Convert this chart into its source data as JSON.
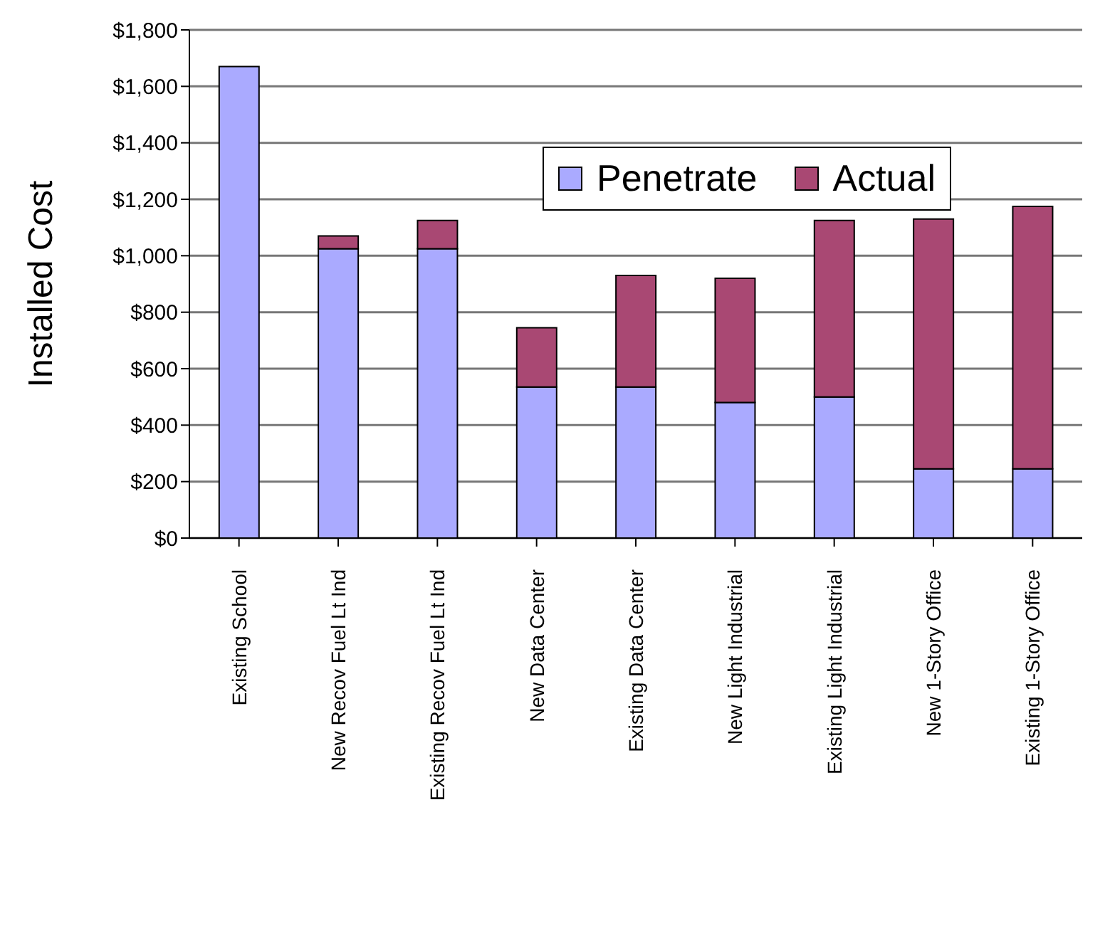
{
  "chart_data": {
    "type": "bar",
    "stacked": true,
    "ylabel": "Installed Cost",
    "categories": [
      "Existing School",
      "New Recov Fuel Lt Ind",
      "Existing Recov Fuel Lt Ind",
      "New Data Center",
      "Existing Data Center",
      "New Light Industrial",
      "Existing Light Industrial",
      "New 1-Story Office",
      "Existing 1-Story Office"
    ],
    "series": [
      {
        "name": "Penetrate",
        "color": "#aaaaff",
        "values": [
          1670,
          1025,
          1025,
          535,
          535,
          480,
          500,
          245,
          245
        ]
      },
      {
        "name": "Actual",
        "color": "#a94873",
        "values": [
          0,
          45,
          100,
          210,
          395,
          440,
          625,
          885,
          930
        ]
      }
    ],
    "ylim": [
      0,
      1800
    ],
    "yticks": [
      {
        "value": 0,
        "label": "$0"
      },
      {
        "value": 200,
        "label": "$200"
      },
      {
        "value": 400,
        "label": "$400"
      },
      {
        "value": 600,
        "label": "$600"
      },
      {
        "value": 800,
        "label": "$800"
      },
      {
        "value": 1000,
        "label": "$1,000"
      },
      {
        "value": 1200,
        "label": "$1,200"
      },
      {
        "value": 1400,
        "label": "$1,400"
      },
      {
        "value": 1600,
        "label": "$1,600"
      },
      {
        "value": 1800,
        "label": "$1,800"
      }
    ],
    "grid": "y",
    "legend": "top right"
  }
}
